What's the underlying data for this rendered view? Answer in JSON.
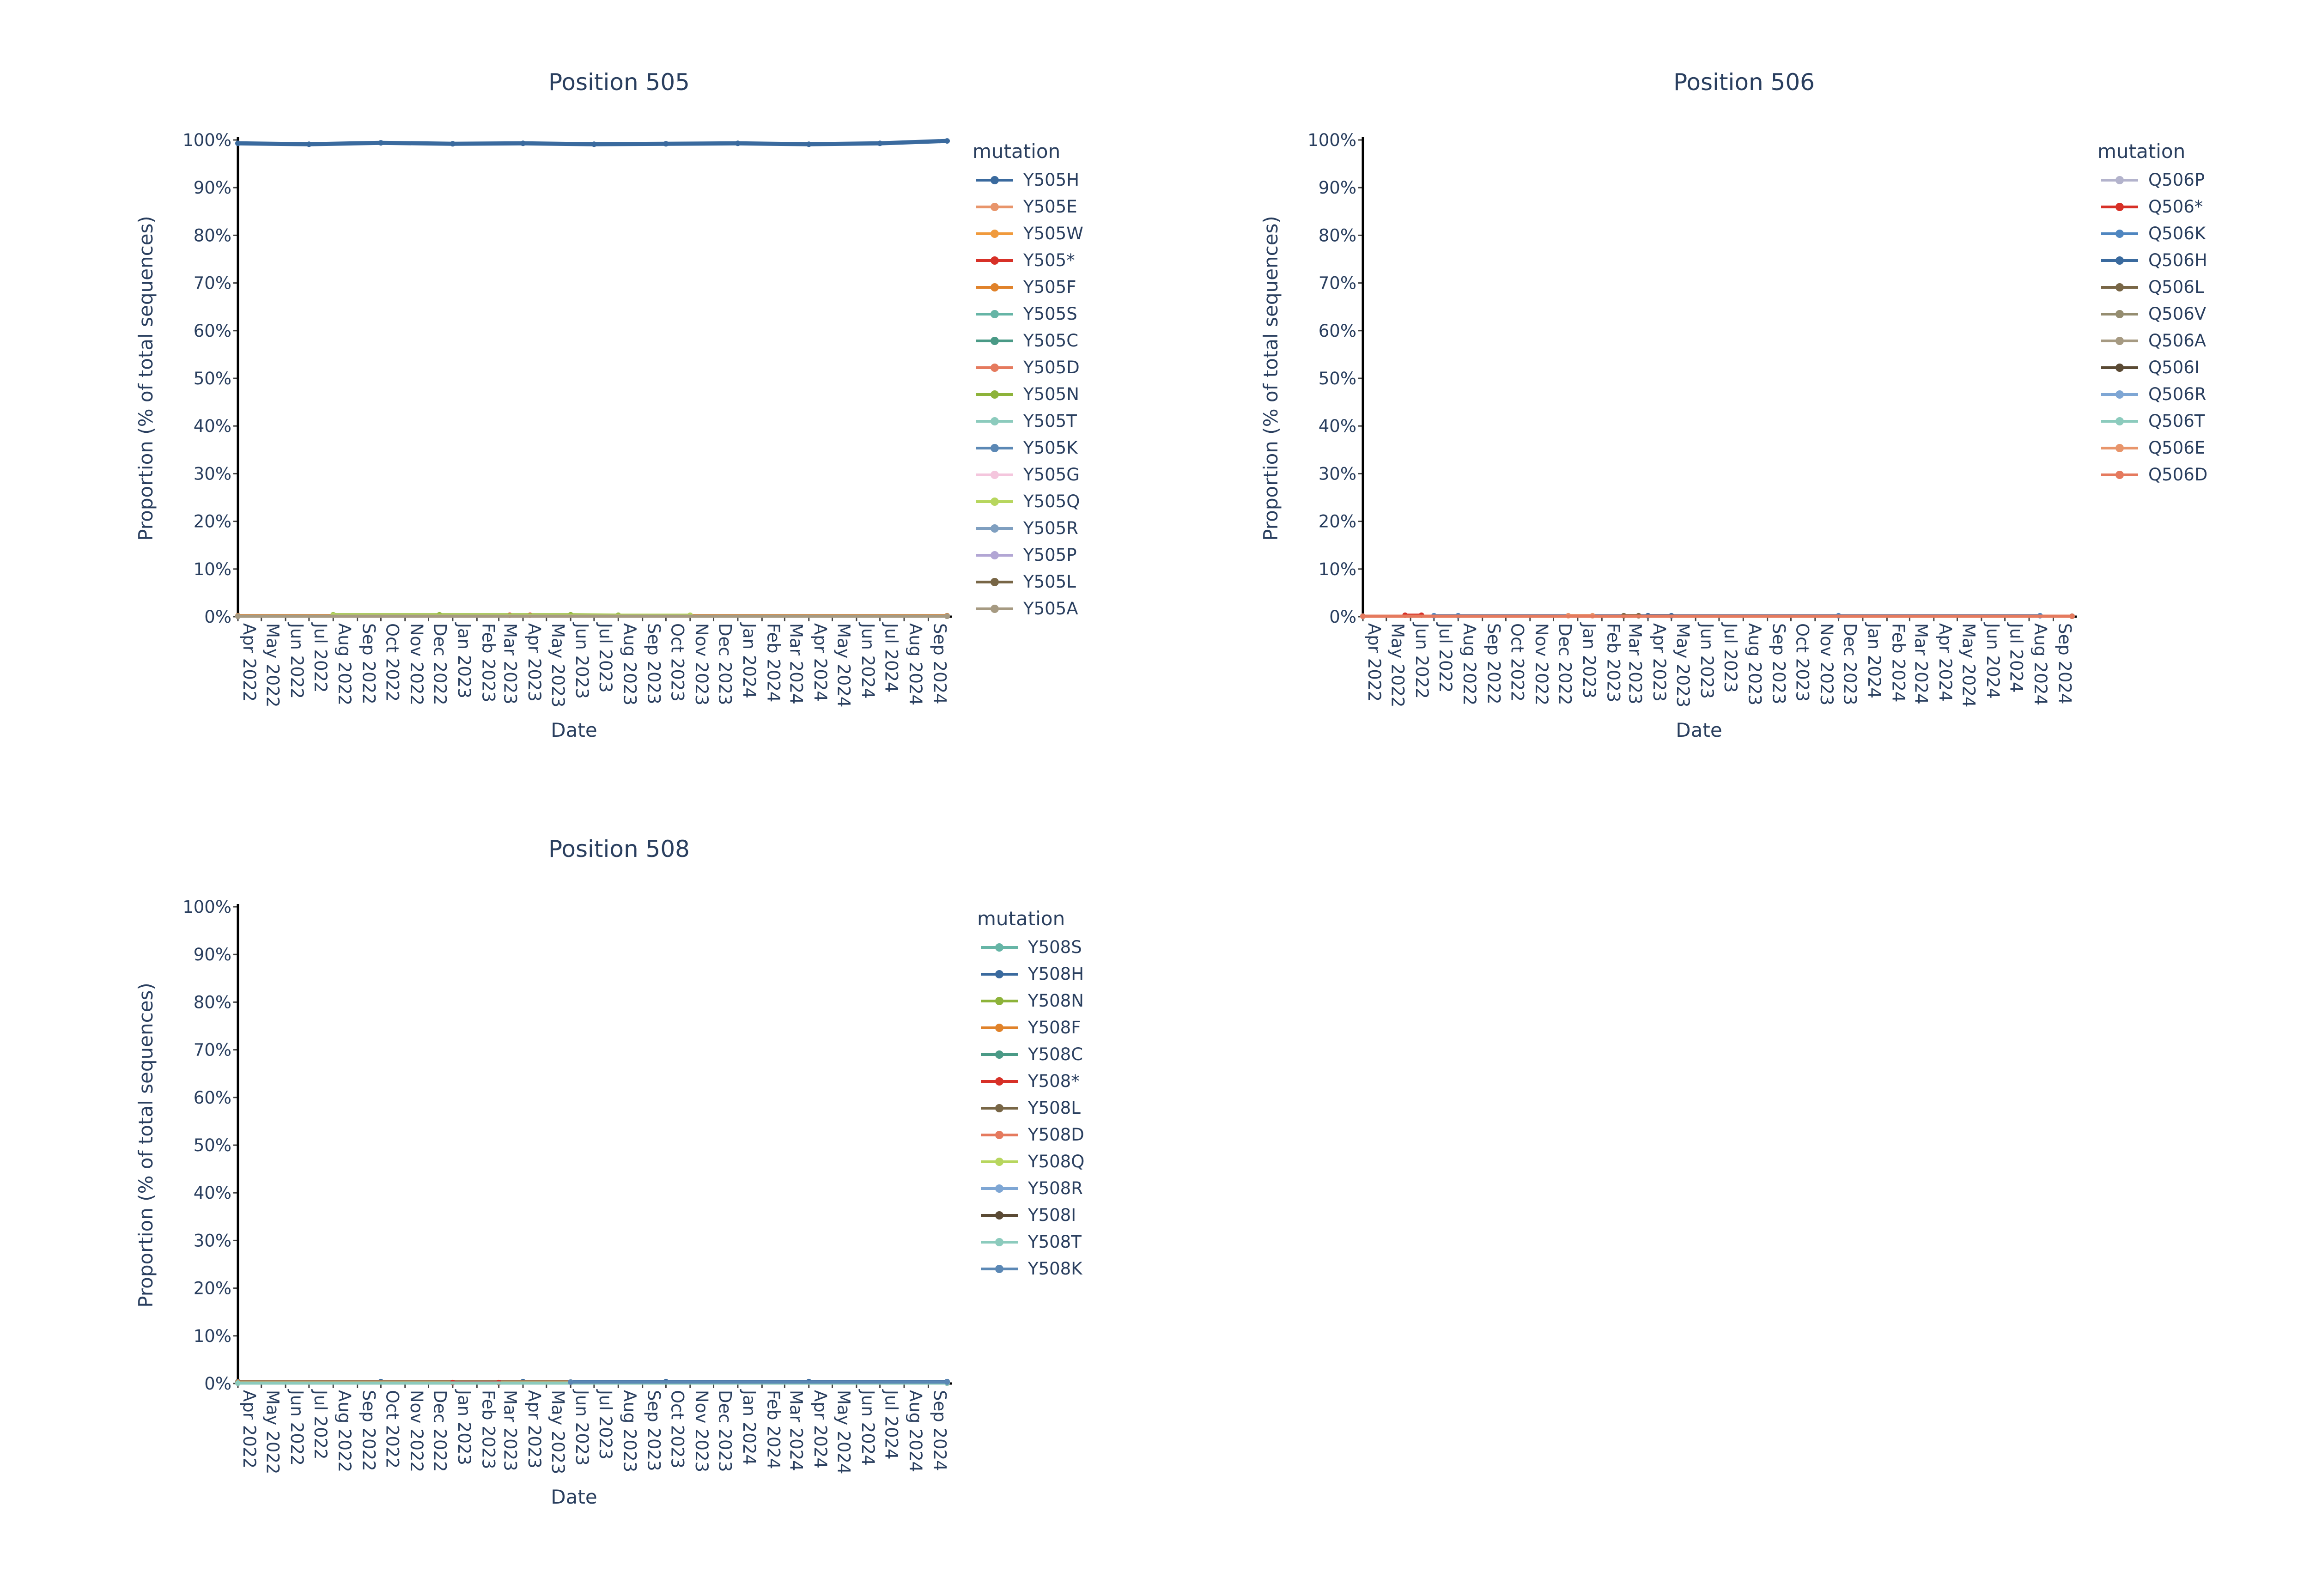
{
  "chart_data": [
    {
      "type": "line",
      "title": "Position 505",
      "xlabel": "Date",
      "ylabel": "Proportion (% of total sequences)",
      "ylim": [
        0,
        100
      ],
      "y_ticks": [
        "0%",
        "10%",
        "20%",
        "30%",
        "40%",
        "50%",
        "60%",
        "70%",
        "80%",
        "90%",
        "100%"
      ],
      "x_ticks": [
        "Apr 2022",
        "May 2022",
        "Jun 2022",
        "Jul 2022",
        "Aug 2022",
        "Sep 2022",
        "Oct 2022",
        "Nov 2022",
        "Dec 2022",
        "Jan 2023",
        "Feb 2023",
        "Mar 2023",
        "Apr 2023",
        "May 2023",
        "Jun 2023",
        "Jul 2023",
        "Aug 2023",
        "Sep 2023",
        "Oct 2023",
        "Nov 2023",
        "Dec 2023",
        "Jan 2024",
        "Feb 2024",
        "Mar 2024",
        "Apr 2024",
        "May 2024",
        "Jun 2024",
        "Jul 2024",
        "Aug 2024",
        "Sep 2024"
      ],
      "xlim": [
        "2022-04-01",
        "2024-09-25"
      ],
      "legend_title": "mutation",
      "legend_position": "right",
      "series": [
        {
          "name": "Y505H",
          "color": "#3a6a9e",
          "dates": [
            "2022-04-01",
            "2022-07-01",
            "2022-10-01",
            "2023-01-01",
            "2023-04-01",
            "2023-07-01",
            "2023-10-01",
            "2024-01-01",
            "2024-04-01",
            "2024-07-01",
            "2024-09-25"
          ],
          "values": [
            99.3,
            99.1,
            99.4,
            99.2,
            99.3,
            99.1,
            99.2,
            99.3,
            99.1,
            99.3,
            99.8
          ]
        },
        {
          "name": "Y505E",
          "color": "#e8956b",
          "dates": [
            "2022-04-01",
            "2024-09-25"
          ],
          "values": [
            0.2,
            0.2
          ]
        },
        {
          "name": "Y505W",
          "color": "#f09a3c",
          "dates": [
            "2022-04-01",
            "2024-09-25"
          ],
          "values": [
            0.1,
            0.1
          ]
        },
        {
          "name": "Y505*",
          "color": "#d73027",
          "dates": [
            "2023-03-15",
            "2023-04-10"
          ],
          "values": [
            0.3,
            0.3
          ]
        },
        {
          "name": "Y505F",
          "color": "#e0822a",
          "dates": [
            "2022-04-01",
            "2024-09-25"
          ],
          "values": [
            0.2,
            0.2
          ]
        },
        {
          "name": "Y505S",
          "color": "#66b5a6",
          "dates": [
            "2022-04-01",
            "2024-09-25"
          ],
          "values": [
            0.1,
            0.1
          ]
        },
        {
          "name": "Y505C",
          "color": "#4a9a86",
          "dates": [
            "2022-04-01",
            "2024-09-25"
          ],
          "values": [
            0.1,
            0.1
          ]
        },
        {
          "name": "Y505D",
          "color": "#e57a5e",
          "dates": [
            "2022-04-01",
            "2024-09-25"
          ],
          "values": [
            0.1,
            0.1
          ]
        },
        {
          "name": "Y505N",
          "color": "#8db33a",
          "dates": [
            "2022-08-01",
            "2022-12-15",
            "2023-06-01",
            "2023-08-01"
          ],
          "values": [
            0.4,
            0.4,
            0.4,
            0.3
          ]
        },
        {
          "name": "Y505T",
          "color": "#8ccbbd",
          "dates": [
            "2022-04-01",
            "2024-09-25"
          ],
          "values": [
            0.1,
            0.1
          ]
        },
        {
          "name": "Y505K",
          "color": "#5b88b5",
          "dates": [
            "2022-04-01",
            "2024-09-25"
          ],
          "values": [
            0.1,
            0.1
          ]
        },
        {
          "name": "Y505G",
          "color": "#f4c6dd",
          "dates": [
            "2022-04-01",
            "2024-09-25"
          ],
          "values": [
            0.1,
            0.1
          ]
        },
        {
          "name": "Y505Q",
          "color": "#b7d65e",
          "dates": [
            "2022-08-01",
            "2023-11-01"
          ],
          "values": [
            0.3,
            0.3
          ]
        },
        {
          "name": "Y505R",
          "color": "#7f9fc0",
          "dates": [
            "2022-04-01",
            "2024-09-25"
          ],
          "values": [
            0.1,
            0.1
          ]
        },
        {
          "name": "Y505P",
          "color": "#b2a6d4",
          "dates": [
            "2022-04-01",
            "2024-09-25"
          ],
          "values": [
            0.1,
            0.1
          ]
        },
        {
          "name": "Y505L",
          "color": "#786646",
          "dates": [
            "2022-04-01",
            "2024-09-25"
          ],
          "values": [
            0.1,
            0.1
          ]
        },
        {
          "name": "Y505A",
          "color": "#a69a82",
          "dates": [
            "2022-04-01",
            "2024-09-25"
          ],
          "values": [
            0.1,
            0.1
          ]
        }
      ]
    },
    {
      "type": "line",
      "title": "Position 506",
      "xlabel": "Date",
      "ylabel": "Proportion (% of total sequences)",
      "ylim": [
        0,
        100
      ],
      "y_ticks": [
        "0%",
        "10%",
        "20%",
        "30%",
        "40%",
        "50%",
        "60%",
        "70%",
        "80%",
        "90%",
        "100%"
      ],
      "x_ticks": [
        "Apr 2022",
        "May 2022",
        "Jun 2022",
        "Jul 2022",
        "Aug 2022",
        "Sep 2022",
        "Oct 2022",
        "Nov 2022",
        "Dec 2022",
        "Jan 2023",
        "Feb 2023",
        "Mar 2023",
        "Apr 2023",
        "May 2023",
        "Jun 2023",
        "Jul 2023",
        "Aug 2023",
        "Sep 2023",
        "Oct 2023",
        "Nov 2023",
        "Dec 2023",
        "Jan 2024",
        "Feb 2024",
        "Mar 2024",
        "Apr 2024",
        "May 2024",
        "Jun 2024",
        "Jul 2024",
        "Aug 2024",
        "Sep 2024"
      ],
      "xlim": [
        "2022-04-01",
        "2024-09-25"
      ],
      "legend_title": "mutation",
      "legend_position": "right",
      "series": [
        {
          "name": "Q506P",
          "color": "#b3b3cc",
          "dates": [
            "2022-04-01",
            "2024-09-25"
          ],
          "values": [
            0.1,
            0.1
          ]
        },
        {
          "name": "Q506*",
          "color": "#d73027",
          "dates": [
            "2022-05-25",
            "2022-06-15"
          ],
          "values": [
            0.3,
            0.3
          ]
        },
        {
          "name": "Q506K",
          "color": "#4f86c0",
          "dates": [
            "2022-07-01",
            "2022-08-01",
            "2023-12-01",
            "2024-08-15"
          ],
          "values": [
            0.2,
            0.2,
            0.2,
            0.2
          ]
        },
        {
          "name": "Q506H",
          "color": "#3a6a9e",
          "dates": [
            "2023-04-01",
            "2023-05-01"
          ],
          "values": [
            0.2,
            0.2
          ]
        },
        {
          "name": "Q506L",
          "color": "#786646",
          "dates": [
            "2023-03-01",
            "2023-03-20"
          ],
          "values": [
            0.2,
            0.2
          ]
        },
        {
          "name": "Q506V",
          "color": "#958d70",
          "dates": [
            "2022-04-01",
            "2024-09-25"
          ],
          "values": [
            0.1,
            0.1
          ]
        },
        {
          "name": "Q506A",
          "color": "#a69a82",
          "dates": [
            "2022-04-01",
            "2024-09-25"
          ],
          "values": [
            0.1,
            0.1
          ]
        },
        {
          "name": "Q506I",
          "color": "#5a4a34",
          "dates": [
            "2022-04-01",
            "2024-09-25"
          ],
          "values": [
            0.1,
            0.1
          ]
        },
        {
          "name": "Q506R",
          "color": "#7ea6d4",
          "dates": [
            "2022-04-01",
            "2024-09-25"
          ],
          "values": [
            0.1,
            0.1
          ]
        },
        {
          "name": "Q506T",
          "color": "#8ccbbd",
          "dates": [
            "2022-04-01",
            "2024-09-25"
          ],
          "values": [
            0.1,
            0.1
          ]
        },
        {
          "name": "Q506E",
          "color": "#e8956b",
          "dates": [
            "2022-12-20",
            "2023-01-20"
          ],
          "values": [
            0.2,
            0.2
          ]
        },
        {
          "name": "Q506D",
          "color": "#e57a5e",
          "dates": [
            "2022-04-01",
            "2024-09-25"
          ],
          "values": [
            0.1,
            0.1
          ]
        }
      ]
    },
    {
      "type": "line",
      "title": "Position 508",
      "xlabel": "Date",
      "ylabel": "Proportion (% of total sequences)",
      "ylim": [
        0,
        100
      ],
      "y_ticks": [
        "0%",
        "10%",
        "20%",
        "30%",
        "40%",
        "50%",
        "60%",
        "70%",
        "80%",
        "90%",
        "100%"
      ],
      "x_ticks": [
        "Apr 2022",
        "May 2022",
        "Jun 2022",
        "Jul 2022",
        "Aug 2022",
        "Sep 2022",
        "Oct 2022",
        "Nov 2022",
        "Dec 2022",
        "Jan 2023",
        "Feb 2023",
        "Mar 2023",
        "Apr 2023",
        "May 2023",
        "Jun 2023",
        "Jul 2023",
        "Aug 2023",
        "Sep 2023",
        "Oct 2023",
        "Nov 2023",
        "Dec 2023",
        "Jan 2024",
        "Feb 2024",
        "Mar 2024",
        "Apr 2024",
        "May 2024",
        "Jun 2024",
        "Jul 2024",
        "Aug 2024",
        "Sep 2024"
      ],
      "xlim": [
        "2022-04-01",
        "2024-09-25"
      ],
      "legend_title": "mutation",
      "legend_position": "right",
      "series": [
        {
          "name": "Y508S",
          "color": "#66b5a6",
          "dates": [
            "2022-04-01",
            "2024-09-25"
          ],
          "values": [
            0.1,
            0.1
          ]
        },
        {
          "name": "Y508H",
          "color": "#3a6a9e",
          "dates": [
            "2022-04-01",
            "2022-10-01",
            "2023-04-01",
            "2023-10-01",
            "2024-04-01",
            "2024-09-25"
          ],
          "values": [
            0.4,
            0.4,
            0.4,
            0.4,
            0.4,
            0.4
          ]
        },
        {
          "name": "Y508N",
          "color": "#8db33a",
          "dates": [
            "2022-04-01",
            "2024-09-25"
          ],
          "values": [
            0.1,
            0.1
          ]
        },
        {
          "name": "Y508F",
          "color": "#e0822a",
          "dates": [
            "2022-04-01",
            "2023-06-01"
          ],
          "values": [
            0.3,
            0.3
          ]
        },
        {
          "name": "Y508C",
          "color": "#4a9a86",
          "dates": [
            "2022-04-01",
            "2024-09-25"
          ],
          "values": [
            0.1,
            0.1
          ]
        },
        {
          "name": "Y508*",
          "color": "#d73027",
          "dates": [
            "2023-01-01",
            "2023-03-01"
          ],
          "values": [
            0.2,
            0.2
          ]
        },
        {
          "name": "Y508L",
          "color": "#786646",
          "dates": [
            "2022-04-01",
            "2024-09-25"
          ],
          "values": [
            0.1,
            0.1
          ]
        },
        {
          "name": "Y508D",
          "color": "#e57a5e",
          "dates": [
            "2022-04-01",
            "2024-09-25"
          ],
          "values": [
            0.1,
            0.1
          ]
        },
        {
          "name": "Y508Q",
          "color": "#b7d65e",
          "dates": [
            "2022-04-01",
            "2024-09-25"
          ],
          "values": [
            0.1,
            0.1
          ]
        },
        {
          "name": "Y508R",
          "color": "#7ea6d4",
          "dates": [
            "2022-04-01",
            "2024-09-25"
          ],
          "values": [
            0.1,
            0.1
          ]
        },
        {
          "name": "Y508I",
          "color": "#5a4a34",
          "dates": [
            "2022-04-01",
            "2024-09-25"
          ],
          "values": [
            0.1,
            0.1
          ]
        },
        {
          "name": "Y508T",
          "color": "#8ccbbd",
          "dates": [
            "2022-04-01",
            "2024-09-25"
          ],
          "values": [
            0.1,
            0.1
          ]
        },
        {
          "name": "Y508K",
          "color": "#5b88b5",
          "dates": [
            "2023-06-01",
            "2024-09-25"
          ],
          "values": [
            0.3,
            0.3
          ]
        }
      ]
    }
  ]
}
